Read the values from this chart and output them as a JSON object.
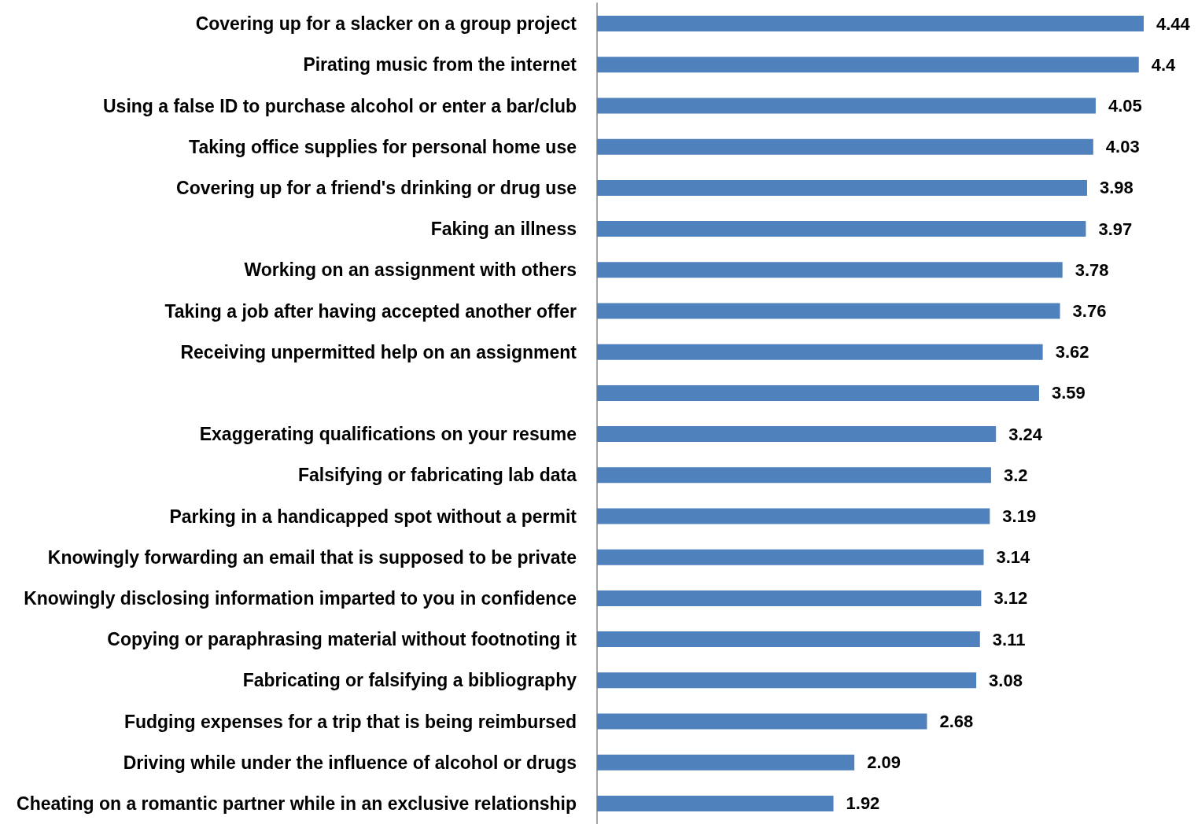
{
  "chart_data": {
    "type": "bar",
    "orientation": "horizontal",
    "color": "#4f81bd",
    "data_labels": true,
    "categories": [
      "Covering up for a slacker on a group project",
      "Pirating music from the internet",
      "Using a false ID to purchase alcohol or enter a bar/club",
      "Taking office supplies for personal home use",
      "Covering up for a friend's drinking or drug use",
      "Faking an illness",
      "Working on an assignment with others",
      "Taking a job after having accepted another offer",
      "Receiving unpermitted help on an assignment",
      null,
      "Exaggerating qualifications on your resume",
      "Falsifying or fabricating lab data",
      "Parking in a handicapped spot without a permit",
      "Knowingly forwarding an email that is supposed to be private",
      "Knowingly disclosing information imparted to you in confidence",
      "Copying or paraphrasing material without footnoting it",
      "Fabricating or falsifying a bibliography",
      "Fudging expenses for a trip that is being reimbursed",
      "Driving while under the influence of alcohol or drugs",
      "Cheating on a romantic partner while in an exclusive relationship"
    ],
    "values": [
      4.44,
      4.4,
      4.05,
      4.03,
      3.98,
      3.97,
      3.78,
      3.76,
      3.62,
      3.59,
      3.24,
      3.2,
      3.19,
      3.14,
      3.12,
      3.11,
      3.08,
      2.68,
      2.09,
      1.92
    ]
  }
}
